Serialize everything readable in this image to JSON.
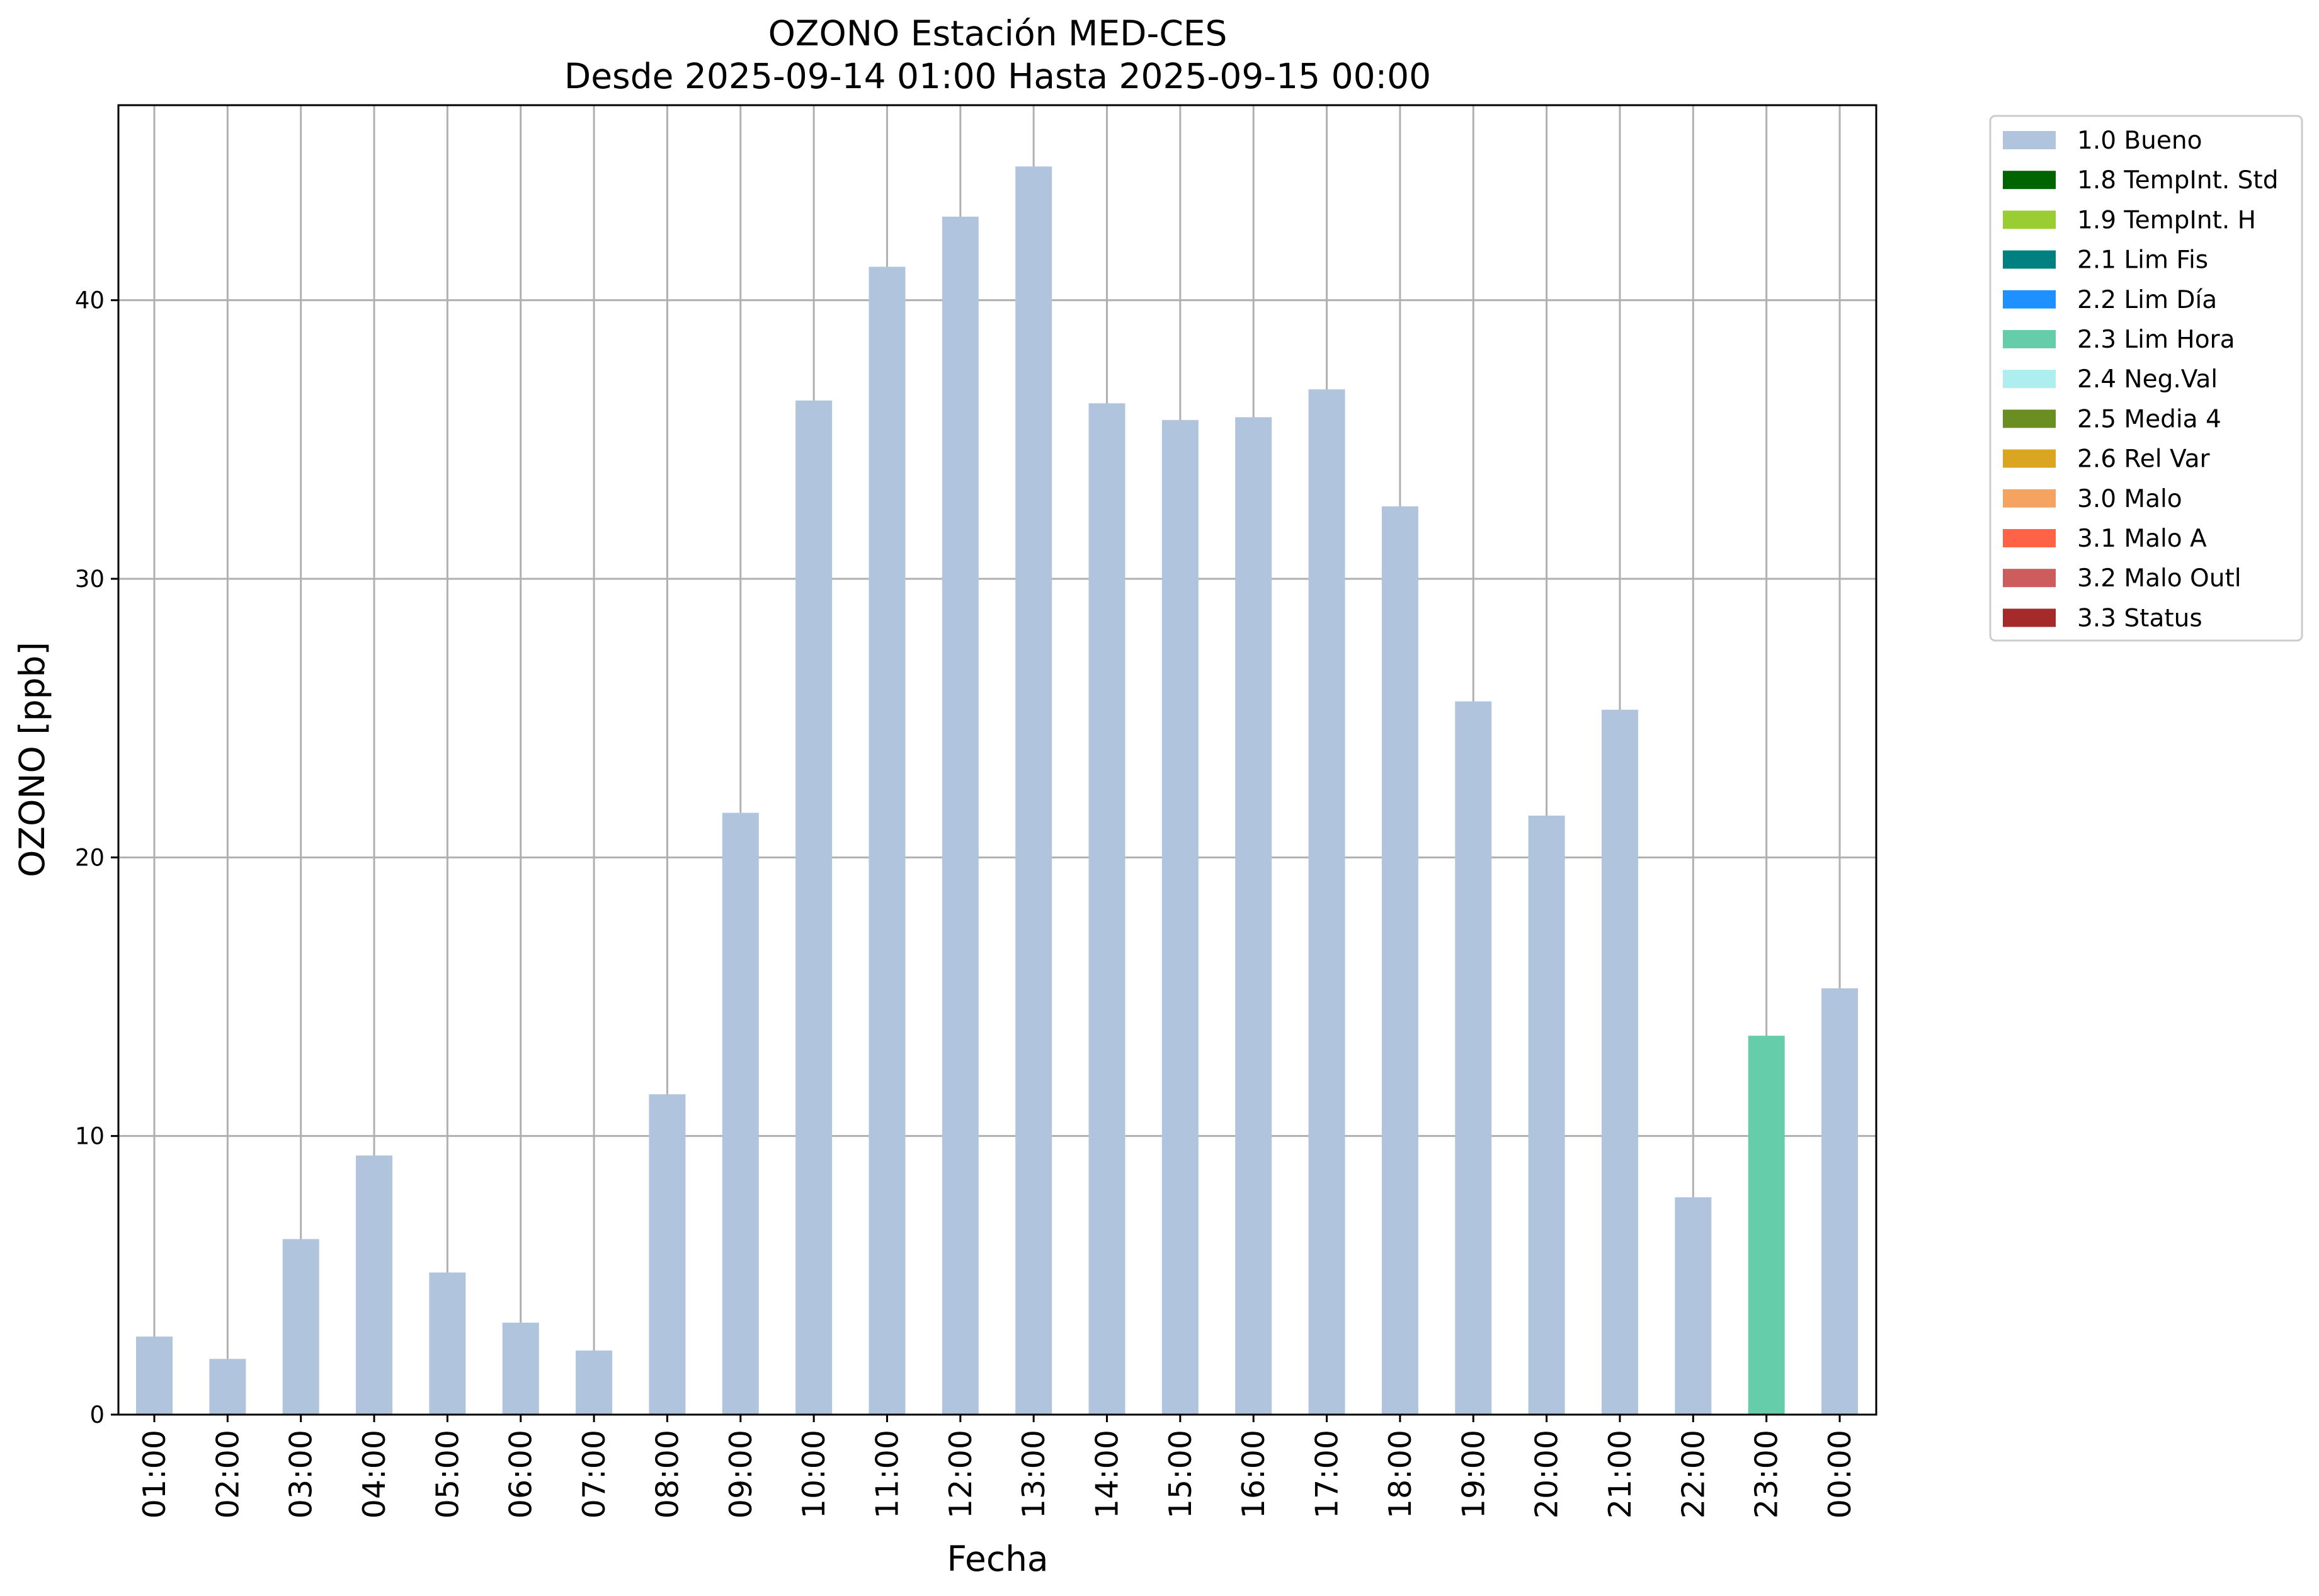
{
  "chart_data": {
    "type": "bar",
    "title": "OZONO Estación MED-CES",
    "subtitle": "Desde 2025-09-14 01:00 Hasta 2025-09-15 00:00",
    "xlabel": "Fecha",
    "ylabel": "OZONO [ppb]",
    "ylim": [
      0,
      47
    ],
    "yticks": [
      0,
      10,
      20,
      30,
      40
    ],
    "grid": true,
    "legend_position": "outside-top-right",
    "categories": [
      "01:00",
      "02:00",
      "03:00",
      "04:00",
      "05:00",
      "06:00",
      "07:00",
      "08:00",
      "09:00",
      "10:00",
      "11:00",
      "12:00",
      "13:00",
      "14:00",
      "15:00",
      "16:00",
      "17:00",
      "18:00",
      "19:00",
      "20:00",
      "21:00",
      "22:00",
      "23:00",
      "00:00"
    ],
    "values": [
      2.8,
      2.0,
      6.3,
      9.3,
      5.1,
      3.3,
      2.3,
      11.5,
      21.6,
      36.4,
      41.2,
      43.0,
      44.8,
      36.3,
      35.7,
      35.8,
      36.8,
      32.6,
      25.6,
      21.5,
      25.3,
      7.8,
      13.6,
      15.3
    ],
    "bar_flags": [
      "1.0 Bueno",
      "1.0 Bueno",
      "1.0 Bueno",
      "1.0 Bueno",
      "1.0 Bueno",
      "1.0 Bueno",
      "1.0 Bueno",
      "1.0 Bueno",
      "1.0 Bueno",
      "1.0 Bueno",
      "1.0 Bueno",
      "1.0 Bueno",
      "1.0 Bueno",
      "1.0 Bueno",
      "1.0 Bueno",
      "1.0 Bueno",
      "1.0 Bueno",
      "1.0 Bueno",
      "1.0 Bueno",
      "1.0 Bueno",
      "1.0 Bueno",
      "1.0 Bueno",
      "2.3 Lim Hora",
      "1.0 Bueno"
    ],
    "legend": [
      {
        "label": "1.0 Bueno",
        "color": "#b0c4de"
      },
      {
        "label": "1.8 TempInt. Std",
        "color": "#006400"
      },
      {
        "label": "1.9 TempInt. H",
        "color": "#9acd32"
      },
      {
        "label": "2.1 Lim Fis",
        "color": "#008080"
      },
      {
        "label": "2.2 Lim Día",
        "color": "#1e90ff"
      },
      {
        "label": "2.3 Lim Hora",
        "color": "#66cdaa"
      },
      {
        "label": "2.4 Neg.Val",
        "color": "#afeeee"
      },
      {
        "label": "2.5 Media 4",
        "color": "#6b8e23"
      },
      {
        "label": "2.6 Rel Var",
        "color": "#daa520"
      },
      {
        "label": "3.0 Malo",
        "color": "#f4a460"
      },
      {
        "label": "3.1 Malo A",
        "color": "#ff6347"
      },
      {
        "label": "3.2 Malo Outl",
        "color": "#cd5c5c"
      },
      {
        "label": "3.3 Status",
        "color": "#a52a2a"
      }
    ]
  }
}
